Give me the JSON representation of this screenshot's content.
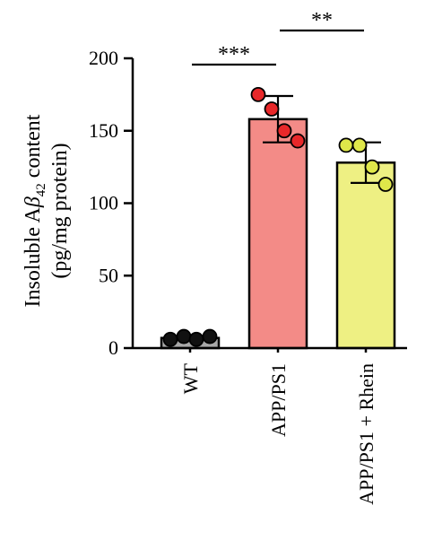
{
  "chart_data": {
    "type": "bar",
    "title": "",
    "ylabel_main": "Insoluble A",
    "ylabel_symbol": "β",
    "ylabel_subscript": "42",
    "ylabel_suffix": " content",
    "ylabel_unit": "(pg/mg protein)",
    "xlabel": "",
    "ylim": [
      0,
      200
    ],
    "yticks": [
      0,
      50,
      100,
      150,
      200
    ],
    "categories": [
      "WT",
      "APP/PS1",
      "APP/PS1 + Rhein"
    ],
    "values": [
      7,
      158,
      128
    ],
    "errors": [
      1,
      16,
      14
    ],
    "points": [
      [
        6,
        8,
        6,
        8
      ],
      [
        175,
        165,
        150,
        143
      ],
      [
        140,
        140,
        125,
        113
      ]
    ],
    "bar_colors": [
      "#a8a8a8",
      "#f38b87",
      "#eef083"
    ],
    "point_colors": [
      "#111111",
      "#e8282a",
      "#dfe74a"
    ],
    "significance": [
      {
        "from": 0,
        "to": 1,
        "label": "***"
      },
      {
        "from": 1,
        "to": 2,
        "label": "**"
      }
    ],
    "grid": false,
    "legend": "none"
  }
}
